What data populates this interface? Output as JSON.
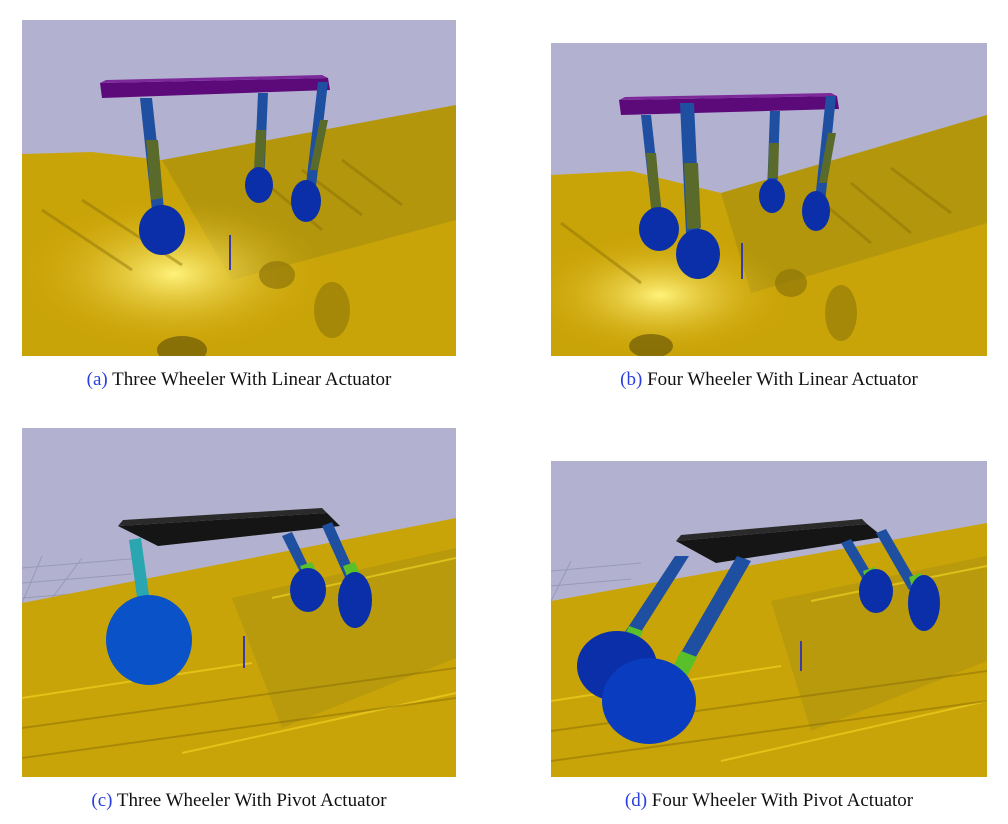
{
  "figures": [
    {
      "id": "a",
      "label": "(a)",
      "caption": "Three Wheeler With Linear Actuator"
    },
    {
      "id": "b",
      "label": "(b)",
      "caption": "Four Wheeler With Linear Actuator"
    },
    {
      "id": "c",
      "label": "(c)",
      "caption": "Three Wheeler With Pivot Actuator"
    },
    {
      "id": "d",
      "label": "(d)",
      "caption": "Four Wheeler With Pivot Actuator"
    }
  ],
  "colors": {
    "sky": "#b2b2d0",
    "ground": "#c9a408",
    "ground_light": "#e8c020",
    "wheel": "#0a2fa8",
    "frame_linear": "#5c0a7a",
    "frame_pivot": "#151515",
    "leg_blue": "#1f4fa0",
    "leg_olive": "#5a6a2a",
    "actuator_green": "#5ac02a",
    "leg_cyan": "#2aa6b0",
    "caption_label": "#2a3fe0"
  }
}
